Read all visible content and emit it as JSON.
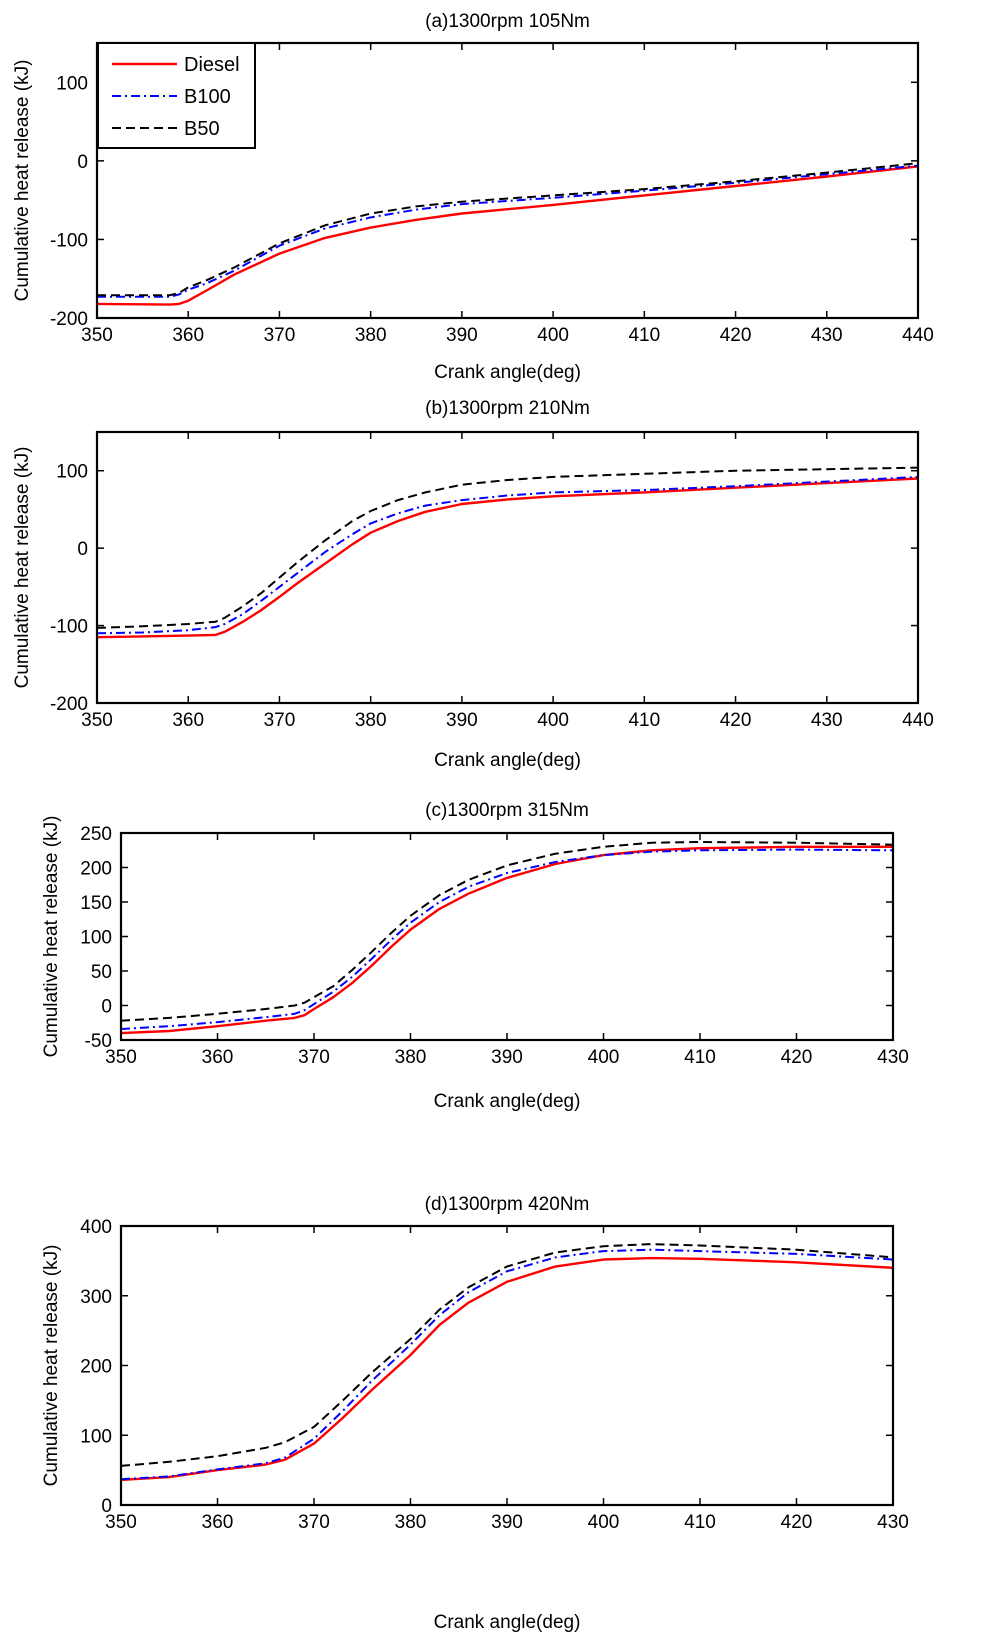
{
  "colors": {
    "Diesel": "#ff0000",
    "B100": "#0000ff",
    "B50": "#000000"
  },
  "legend": [
    "Diesel",
    "B100",
    "B50"
  ],
  "chart_data": [
    {
      "type": "line",
      "title": "(a)1300rpm 105Nm",
      "xlabel": "Crank angle(deg)",
      "ylabel": "Cumulative heat release (kJ)",
      "xlim": [
        350,
        440
      ],
      "ylim": [
        -200,
        150
      ],
      "xticks": [
        "350",
        "360",
        "370",
        "380",
        "390",
        "400",
        "410",
        "420",
        "430",
        "440"
      ],
      "yticks": [
        "-200",
        "-100",
        "0",
        "100"
      ],
      "legend_position": "top-left",
      "series": [
        {
          "name": "Diesel",
          "style": "solid",
          "x": [
            350,
            358,
            359,
            360,
            362,
            365,
            370,
            375,
            380,
            385,
            390,
            400,
            410,
            420,
            430,
            440
          ],
          "y": [
            -182,
            -183,
            -182,
            -178,
            -165,
            -145,
            -118,
            -98,
            -85,
            -75,
            -67,
            -56,
            -44,
            -32,
            -20,
            -7
          ]
        },
        {
          "name": "B100",
          "style": "dashdot",
          "x": [
            350,
            358,
            359,
            360,
            362,
            365,
            370,
            375,
            380,
            385,
            390,
            400,
            410,
            420,
            430,
            440
          ],
          "y": [
            -173,
            -173,
            -170,
            -164,
            -156,
            -140,
            -108,
            -86,
            -72,
            -62,
            -55,
            -47,
            -38,
            -28,
            -17,
            -6
          ]
        },
        {
          "name": "B50",
          "style": "dashed",
          "x": [
            350,
            358,
            359,
            360,
            362,
            365,
            370,
            375,
            380,
            385,
            390,
            400,
            410,
            420,
            430,
            440
          ],
          "y": [
            -171,
            -171,
            -168,
            -161,
            -152,
            -136,
            -105,
            -82,
            -67,
            -58,
            -52,
            -44,
            -36,
            -26,
            -15,
            -3
          ]
        }
      ]
    },
    {
      "type": "line",
      "title": "(b)1300rpm 210Nm",
      "xlabel": "Crank angle(deg)",
      "ylabel": "Cumulative heat release (kJ)",
      "xlim": [
        350,
        440
      ],
      "ylim": [
        -200,
        150
      ],
      "xticks": [
        "350",
        "360",
        "370",
        "380",
        "390",
        "400",
        "410",
        "420",
        "430",
        "440"
      ],
      "yticks": [
        "-200",
        "-100",
        "0",
        "100"
      ],
      "series": [
        {
          "name": "Diesel",
          "style": "solid",
          "x": [
            350,
            355,
            360,
            363,
            364,
            366,
            368,
            370,
            372,
            375,
            378,
            380,
            383,
            386,
            390,
            395,
            400,
            410,
            420,
            430,
            440
          ],
          "y": [
            -115,
            -114,
            -113,
            -112,
            -108,
            -95,
            -80,
            -63,
            -45,
            -20,
            5,
            20,
            35,
            47,
            57,
            63,
            67,
            72,
            78,
            84,
            90
          ]
        },
        {
          "name": "B100",
          "style": "dashdot",
          "x": [
            350,
            355,
            360,
            363,
            364,
            366,
            368,
            370,
            372,
            375,
            378,
            380,
            383,
            386,
            390,
            395,
            400,
            410,
            420,
            430,
            440
          ],
          "y": [
            -110,
            -109,
            -106,
            -102,
            -98,
            -85,
            -68,
            -50,
            -32,
            -5,
            18,
            32,
            45,
            55,
            62,
            68,
            72,
            75,
            80,
            86,
            92
          ]
        },
        {
          "name": "B50",
          "style": "dashed",
          "x": [
            350,
            355,
            360,
            363,
            364,
            366,
            368,
            370,
            372,
            375,
            378,
            380,
            383,
            386,
            390,
            395,
            400,
            410,
            420,
            430,
            440
          ],
          "y": [
            -103,
            -101,
            -98,
            -95,
            -90,
            -75,
            -58,
            -38,
            -18,
            10,
            35,
            48,
            62,
            72,
            82,
            88,
            92,
            96,
            100,
            102,
            104
          ]
        }
      ]
    },
    {
      "type": "line",
      "title": "(c)1300rpm 315Nm",
      "xlabel": "Crank angle(deg)",
      "ylabel": "Cumulative heat release (kJ)",
      "xlim": [
        350,
        430
      ],
      "ylim": [
        -50,
        250
      ],
      "xticks": [
        "350",
        "360",
        "370",
        "380",
        "390",
        "400",
        "410",
        "420",
        "430"
      ],
      "yticks": [
        "-50",
        "0",
        "50",
        "100",
        "150",
        "200",
        "250"
      ],
      "series": [
        {
          "name": "Diesel",
          "style": "solid",
          "x": [
            350,
            355,
            360,
            365,
            368,
            369,
            370,
            372,
            374,
            376,
            378,
            380,
            383,
            386,
            390,
            395,
            400,
            405,
            410,
            420,
            430
          ],
          "y": [
            -40,
            -37,
            -30,
            -22,
            -18,
            -14,
            -5,
            12,
            33,
            58,
            85,
            110,
            140,
            162,
            185,
            205,
            218,
            225,
            228,
            230,
            230
          ]
        },
        {
          "name": "B100",
          "style": "dashdot",
          "x": [
            350,
            355,
            360,
            365,
            368,
            369,
            370,
            372,
            374,
            376,
            378,
            380,
            383,
            386,
            390,
            395,
            400,
            405,
            410,
            420,
            430
          ],
          "y": [
            -34,
            -30,
            -24,
            -17,
            -12,
            -7,
            2,
            20,
            42,
            68,
            95,
            120,
            150,
            172,
            192,
            208,
            218,
            223,
            225,
            226,
            225
          ]
        },
        {
          "name": "B50",
          "style": "dashed",
          "x": [
            350,
            355,
            360,
            365,
            368,
            369,
            370,
            372,
            374,
            376,
            378,
            380,
            383,
            386,
            390,
            395,
            400,
            405,
            410,
            420,
            430
          ],
          "y": [
            -22,
            -18,
            -12,
            -5,
            0,
            4,
            12,
            28,
            52,
            78,
            105,
            130,
            160,
            182,
            203,
            220,
            230,
            236,
            237,
            236,
            233
          ]
        }
      ]
    },
    {
      "type": "line",
      "title": "(d)1300rpm 420Nm",
      "xlabel": "Crank angle(deg)",
      "ylabel": "Cumulative heat release (kJ)",
      "xlim": [
        350,
        430
      ],
      "ylim": [
        0,
        400
      ],
      "xticks": [
        "350",
        "360",
        "370",
        "380",
        "390",
        "400",
        "410",
        "420",
        "430"
      ],
      "yticks": [
        "0",
        "100",
        "200",
        "300",
        "400"
      ],
      "series": [
        {
          "name": "Diesel",
          "style": "solid",
          "x": [
            350,
            355,
            360,
            365,
            367,
            370,
            373,
            376,
            380,
            383,
            386,
            390,
            395,
            400,
            405,
            410,
            420,
            430
          ],
          "y": [
            36,
            40,
            50,
            58,
            65,
            88,
            125,
            165,
            215,
            258,
            290,
            320,
            342,
            352,
            354,
            353,
            348,
            340
          ]
        },
        {
          "name": "B100",
          "style": "dashdot",
          "x": [
            350,
            355,
            360,
            365,
            367,
            370,
            373,
            376,
            380,
            383,
            386,
            390,
            395,
            400,
            405,
            410,
            420,
            430
          ],
          "y": [
            37,
            41,
            51,
            60,
            68,
            95,
            135,
            178,
            230,
            272,
            305,
            335,
            355,
            364,
            366,
            364,
            360,
            352
          ]
        },
        {
          "name": "B50",
          "style": "dashed",
          "x": [
            350,
            355,
            360,
            365,
            367,
            370,
            373,
            376,
            380,
            383,
            386,
            390,
            395,
            400,
            405,
            410,
            420,
            430
          ],
          "y": [
            56,
            62,
            70,
            82,
            90,
            112,
            150,
            190,
            238,
            280,
            312,
            342,
            362,
            371,
            374,
            372,
            366,
            355
          ]
        }
      ]
    }
  ]
}
